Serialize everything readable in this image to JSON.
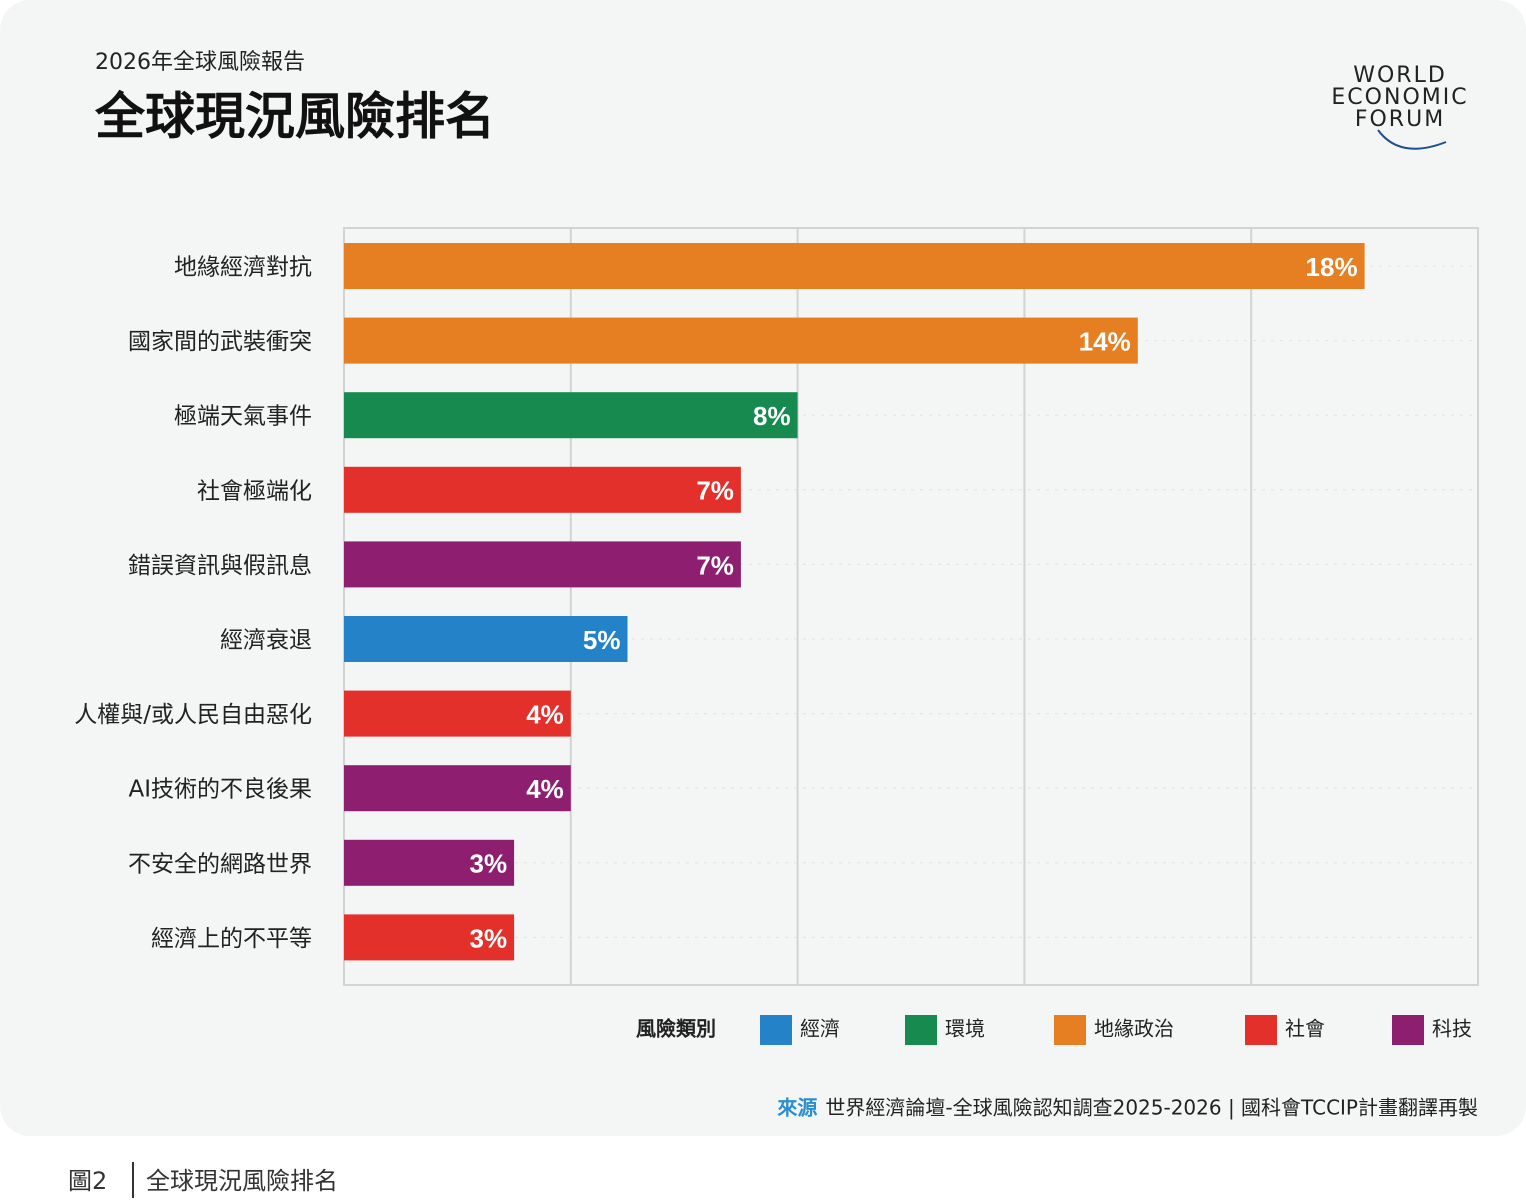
{
  "chart_data": {
    "type": "bar",
    "orientation": "horizontal",
    "subtitle": "2026年全球風險報告",
    "title": "全球現況風險排名",
    "logo": [
      "WORLD",
      "ECONOMIC",
      "FORUM"
    ],
    "categories": [
      "地緣經濟對抗",
      "國家間的武裝衝突",
      "極端天氣事件",
      "社會極端化",
      "錯誤資訊與假訊息",
      "經濟衰退",
      "人權與/或人民自由惡化",
      "AI技術的不良後果",
      "不安全的網路世界",
      "經濟上的不平等"
    ],
    "values": [
      18,
      14,
      8,
      7,
      7,
      5,
      4,
      4,
      3,
      3
    ],
    "value_labels": [
      "18%",
      "14%",
      "8%",
      "7%",
      "7%",
      "5%",
      "4%",
      "4%",
      "3%",
      "3%"
    ],
    "colors": [
      "#e67e22",
      "#e67e22",
      "#178a50",
      "#e3302b",
      "#8e1f70",
      "#2382c8",
      "#e3302b",
      "#8e1f70",
      "#8e1f70",
      "#e3302b"
    ],
    "xlim": [
      0,
      20
    ],
    "xticks": [
      4,
      8,
      12,
      16
    ],
    "grid": true,
    "legend": {
      "title": "風險類別",
      "items": [
        {
          "name": "經濟",
          "color": "#2382c8"
        },
        {
          "name": "環境",
          "color": "#178a50"
        },
        {
          "name": "地緣政治",
          "color": "#e67e22"
        },
        {
          "name": "社會",
          "color": "#e3302b"
        },
        {
          "name": "科技",
          "color": "#8e1f70"
        }
      ]
    },
    "source_label": "來源",
    "source": "世界經濟論壇-全球風險認知調查2025-2026 | 國科會TCCIP計畫翻譯再製",
    "caption_number": "圖2",
    "caption": "全球現況風險排名"
  }
}
